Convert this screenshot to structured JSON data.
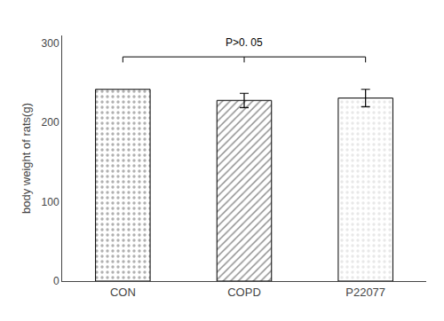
{
  "chart_data": {
    "type": "bar",
    "categories": [
      "CON",
      "COPD",
      "P22077"
    ],
    "values": [
      242,
      228,
      231
    ],
    "errors": [
      0,
      9,
      11
    ],
    "colors": [
      "#b0b0b0",
      "#909090",
      "#e8e8e8"
    ],
    "ylabel": "body weight of rats(g)",
    "ylim": [
      0,
      310
    ],
    "yticks": [
      0,
      100,
      200,
      300
    ],
    "grid": false,
    "annotations": [
      {
        "text": "P>0. 05",
        "y": 291,
        "bracket_y": 283
      }
    ]
  }
}
